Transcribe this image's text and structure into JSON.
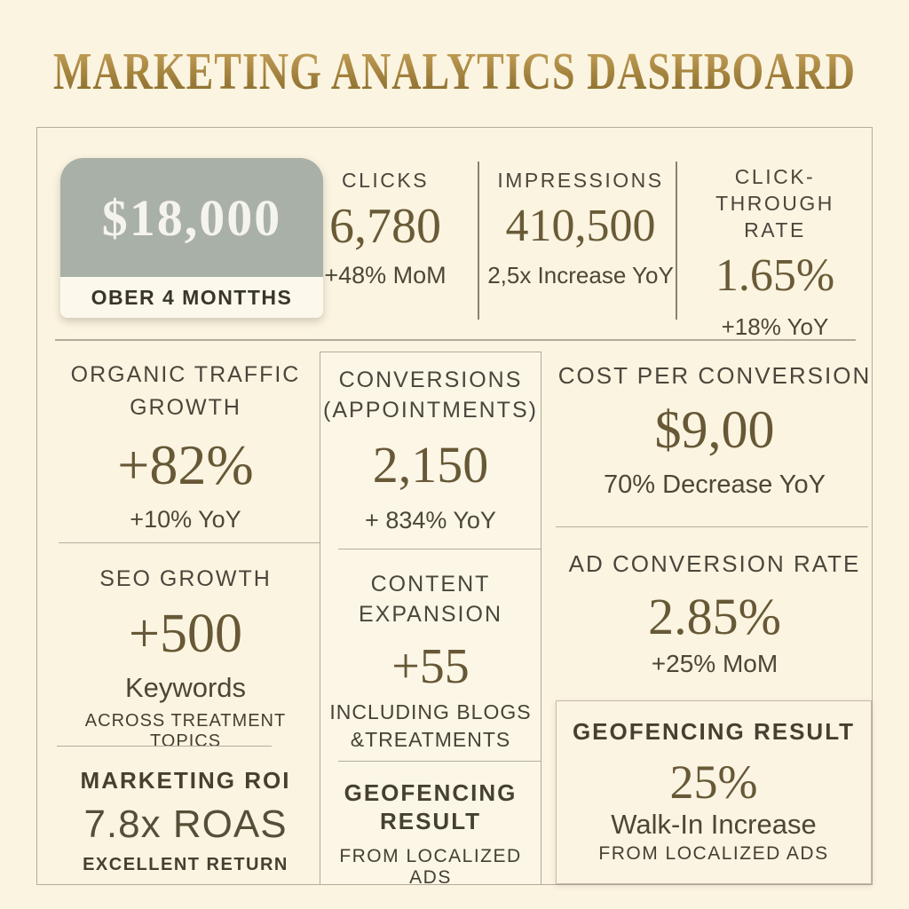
{
  "page": {
    "title": "MARKETING ANALYTICS DASHBOARD",
    "colors": {
      "background": "#fbf4e1",
      "title_gold": "#a6853f",
      "card_sage": "#a9b0a8",
      "card_value_text": "#f4f3ec",
      "number_olive": "#675836",
      "label_dark": "#4a463b",
      "divider": "#b2ab9c"
    }
  },
  "top_row": {
    "spend": {
      "value": "$18,000",
      "caption": "OBER 4 MONTTHS"
    },
    "clicks": {
      "label": "CLICKS",
      "value": "6,780",
      "sub": "+48% MoM"
    },
    "impressions": {
      "label": "IMPRESSIONS",
      "value": "410,500",
      "sub": "2,5x Increase YoY"
    },
    "ctr": {
      "label_line1": "CLICK-",
      "label_line2": "THROUGH RATE",
      "value": "1.65%",
      "sub": "+18% YoY"
    }
  },
  "left_column": {
    "organic": {
      "label_line1": "ORGANIC TRAFFIC",
      "label_line2": "GROWTH",
      "value": "+82%",
      "sub": "+10% YoY"
    },
    "seo": {
      "label": "SEO GROWTH",
      "value": "+500",
      "unit": "Keywords",
      "sub": "ACROSS TREATMENT TOPICS"
    },
    "roi": {
      "label": "MARKETING ROI",
      "value": "7.8x ROAS",
      "sub": "EXCELLENT RETURN"
    }
  },
  "middle_column": {
    "conversions": {
      "label_line1": "CONVERSIONS",
      "label_line2": "(APPOINTMENTS)",
      "value": "2,150",
      "sub": "+ 834% YoY"
    },
    "content": {
      "label_line1": "CONTENT",
      "label_line2": "EXPANSION",
      "value": "+55",
      "sub_line1": "INCLUDING BLOGS",
      "sub_line2": "&TREATMENTS"
    },
    "geofencing": {
      "label_line1": "GEOFENCING",
      "label_line2": "RESULT",
      "sub": "FROM LOCALIZED ADS"
    }
  },
  "right_column": {
    "cost_per_conversion": {
      "label": "COST PER CONVERSION",
      "value": "$9,00",
      "sub": "70% Decrease YoY"
    },
    "ad_conversion_rate": {
      "label": "AD CONVERSION RATE",
      "value": "2.85%",
      "sub": "+25% MoM"
    },
    "geofencing": {
      "label": "GEOFENCING RESULT",
      "value": "25%",
      "unit": "Walk-In Increase",
      "sub": "FROM LOCALIZED ADS"
    }
  },
  "chart_data": {
    "type": "table",
    "title": "MARKETING ANALYTICS DASHBOARD",
    "metrics": [
      {
        "label": "OBER 4 MONTTHS",
        "value": "$18,000",
        "note": ""
      },
      {
        "label": "CLICKS",
        "value": "6,780",
        "note": "+48% MoM"
      },
      {
        "label": "IMPRESSIONS",
        "value": "410,500",
        "note": "2,5x Increase YoY"
      },
      {
        "label": "CLICK-THROUGH RATE",
        "value": "1.65%",
        "note": "+18% YoY"
      },
      {
        "label": "ORGANIC TRAFFIC GROWTH",
        "value": "+82%",
        "note": "+10% YoY"
      },
      {
        "label": "CONVERSIONS (APPOINTMENTS)",
        "value": "2,150",
        "note": "+ 834% YoY"
      },
      {
        "label": "COST PER CONVERSION",
        "value": "$9,00",
        "note": "70% Decrease YoY"
      },
      {
        "label": "SEO GROWTH",
        "value": "+500 Keywords",
        "note": "ACROSS TREATMENT TOPICS"
      },
      {
        "label": "CONTENT EXPANSION",
        "value": "+55",
        "note": "INCLUDING BLOGS &TREATMENTS"
      },
      {
        "label": "AD CONVERSION RATE",
        "value": "2.85%",
        "note": "+25% MoM"
      },
      {
        "label": "MARKETING ROI",
        "value": "7.8x ROAS",
        "note": "EXCELLENT RETURN"
      },
      {
        "label": "GEOFENCING RESULT",
        "value": "",
        "note": "FROM LOCALIZED ADS"
      },
      {
        "label": "GEOFENCING RESULT",
        "value": "25% Walk-In Increase",
        "note": "FROM LOCALIZED ADS"
      }
    ]
  }
}
